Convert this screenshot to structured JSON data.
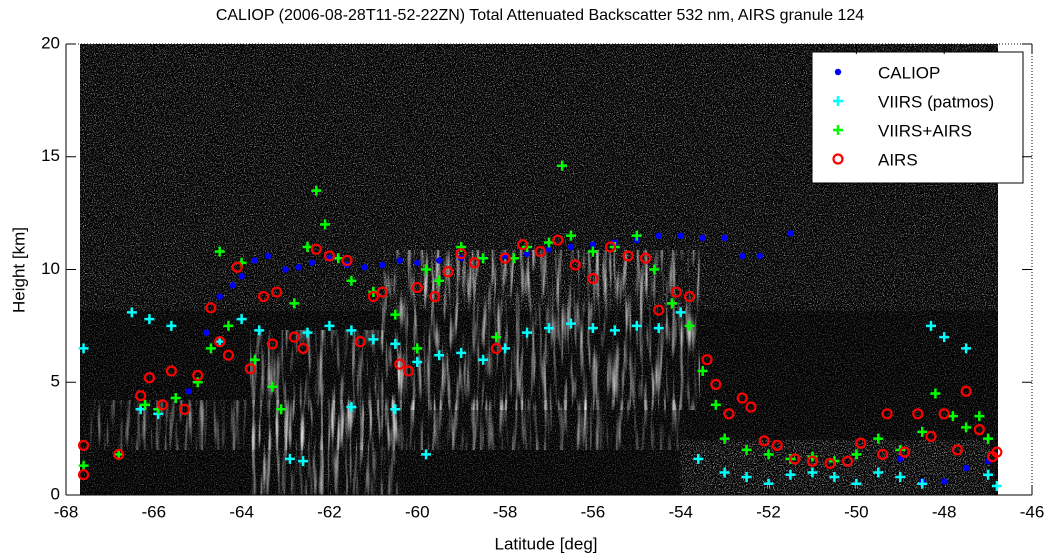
{
  "chart_data": {
    "type": "scatter",
    "title": "CALIOP (2006-08-28T11-52-22ZN) Total Attenuated Backscatter 532 nm, AIRS granule 124",
    "x_label": "Latitude [deg]",
    "y_label": "Height [km]",
    "xlim": [
      -68,
      -46
    ],
    "ylim": [
      0,
      20
    ],
    "xticks": [
      -68,
      -66,
      -64,
      -62,
      -60,
      -58,
      -56,
      -54,
      -52,
      -50,
      -48,
      -46
    ],
    "yticks": [
      0,
      5,
      10,
      15,
      20
    ],
    "legend": "top-right",
    "series": [
      {
        "name": "CALIOP",
        "color": "#0000ff",
        "marker": "dot",
        "x": [
          -65.2,
          -64.8,
          -64.5,
          -64.2,
          -64.0,
          -63.7,
          -63.4,
          -63.0,
          -62.7,
          -62.4,
          -62.0,
          -61.6,
          -61.2,
          -60.8,
          -60.4,
          -60.0,
          -59.5,
          -59.0,
          -58.5,
          -58.0,
          -57.5,
          -57.0,
          -56.5,
          -56.0,
          -55.5,
          -55.0,
          -54.5,
          -54.0,
          -53.5,
          -53.0,
          -52.6,
          -52.2,
          -51.5,
          -49.0,
          -48.5,
          -48.0,
          -47.5,
          -47.0
        ],
        "y": [
          4.6,
          7.2,
          8.8,
          9.3,
          9.7,
          10.4,
          10.6,
          10.0,
          10.1,
          10.3,
          10.5,
          10.2,
          10.1,
          10.2,
          10.4,
          10.3,
          10.4,
          10.5,
          10.5,
          10.6,
          10.7,
          10.9,
          11.0,
          11.1,
          11.2,
          11.3,
          11.5,
          11.5,
          11.4,
          11.4,
          10.6,
          10.6,
          11.6,
          1.6,
          0.6,
          0.6,
          1.2,
          1.5
        ]
      },
      {
        "name": "VIIRS (patmos)",
        "color": "#00ffff",
        "marker": "plus",
        "x": [
          -67.6,
          -66.5,
          -66.1,
          -65.6,
          -65.9,
          -66.3,
          -64.5,
          -64.0,
          -63.6,
          -62.9,
          -62.6,
          -62.5,
          -62.0,
          -61.5,
          -61.0,
          -60.5,
          -60.0,
          -59.5,
          -59.0,
          -58.5,
          -58.0,
          -57.5,
          -57.0,
          -56.5,
          -56.0,
          -55.5,
          -55.0,
          -54.5,
          -54.0,
          -59.8,
          -60.5,
          -61.5,
          -53.6,
          -53.0,
          -52.5,
          -52.0,
          -51.5,
          -51.0,
          -50.5,
          -50.0,
          -49.5,
          -49.0,
          -48.5,
          -48.3,
          -48.0,
          -47.5,
          -47.0,
          -46.8
        ],
        "y": [
          6.5,
          8.1,
          7.8,
          7.5,
          3.6,
          3.8,
          6.8,
          7.8,
          7.3,
          1.6,
          1.5,
          7.2,
          7.5,
          7.3,
          6.9,
          6.7,
          5.9,
          6.2,
          6.3,
          6.0,
          6.5,
          7.2,
          7.4,
          7.6,
          7.4,
          7.3,
          7.5,
          7.4,
          8.1,
          1.8,
          3.8,
          3.9,
          1.6,
          1.0,
          0.8,
          0.5,
          0.9,
          1.0,
          0.8,
          0.5,
          1.0,
          0.8,
          0.5,
          7.5,
          7.0,
          6.5,
          0.9,
          0.4
        ]
      },
      {
        "name": "VIIRS+AIRS",
        "color": "#00ff00",
        "marker": "plus",
        "x": [
          -67.6,
          -66.8,
          -66.2,
          -65.9,
          -65.5,
          -65.0,
          -64.7,
          -64.5,
          -64.3,
          -64.0,
          -63.7,
          -63.3,
          -63.1,
          -62.8,
          -62.5,
          -62.3,
          -62.1,
          -61.8,
          -61.5,
          -61.0,
          -60.5,
          -60.0,
          -59.8,
          -59.5,
          -59.0,
          -58.5,
          -58.2,
          -57.8,
          -57.5,
          -57.0,
          -56.7,
          -56.5,
          -56.0,
          -55.5,
          -55.0,
          -54.6,
          -54.2,
          -53.8,
          -53.5,
          -53.2,
          -53.0,
          -52.5,
          -52.0,
          -51.5,
          -51.0,
          -50.5,
          -50.0,
          -49.5,
          -49.0,
          -48.5,
          -48.2,
          -47.8,
          -47.5,
          -47.2,
          -47.0
        ],
        "y": [
          1.3,
          1.8,
          4.0,
          3.8,
          4.3,
          5.0,
          6.5,
          10.8,
          7.5,
          10.3,
          6.0,
          4.8,
          3.8,
          8.5,
          11.0,
          13.5,
          12.0,
          10.5,
          9.5,
          9.0,
          8.0,
          6.5,
          10.0,
          9.5,
          11.0,
          10.5,
          7.0,
          10.5,
          11.0,
          11.2,
          14.6,
          11.5,
          10.8,
          11.0,
          11.5,
          10.0,
          8.5,
          7.5,
          5.5,
          4.0,
          2.5,
          2.0,
          1.8,
          1.6,
          1.7,
          1.5,
          1.8,
          2.5,
          2.0,
          2.8,
          4.5,
          3.5,
          3.0,
          3.5,
          2.5
        ]
      },
      {
        "name": "AIRS",
        "color": "#ff0000",
        "marker": "circle",
        "x": [
          -67.6,
          -67.6,
          -66.8,
          -66.3,
          -66.1,
          -65.8,
          -65.6,
          -65.3,
          -65.0,
          -64.7,
          -64.5,
          -64.3,
          -64.1,
          -63.8,
          -63.5,
          -63.3,
          -63.2,
          -62.8,
          -62.6,
          -62.3,
          -62.0,
          -61.6,
          -61.3,
          -61.0,
          -60.8,
          -60.4,
          -60.2,
          -60.0,
          -59.6,
          -59.3,
          -59.0,
          -58.7,
          -58.2,
          -58.0,
          -57.6,
          -57.2,
          -56.8,
          -56.4,
          -56.0,
          -55.6,
          -55.2,
          -54.8,
          -54.5,
          -54.1,
          -53.8,
          -53.4,
          -53.2,
          -52.9,
          -52.6,
          -52.4,
          -52.1,
          -51.8,
          -51.4,
          -51.0,
          -50.6,
          -50.2,
          -49.9,
          -49.4,
          -49.3,
          -48.9,
          -48.6,
          -48.3,
          -48.0,
          -47.7,
          -47.5,
          -47.2,
          -46.9,
          -46.8
        ],
        "y": [
          2.2,
          0.9,
          1.8,
          4.4,
          5.2,
          4.0,
          5.5,
          3.8,
          5.3,
          8.3,
          6.8,
          6.2,
          10.1,
          5.6,
          8.8,
          6.7,
          9.0,
          7.0,
          6.5,
          10.9,
          10.6,
          10.4,
          6.8,
          8.8,
          9.0,
          5.8,
          5.5,
          9.2,
          8.8,
          9.9,
          10.7,
          10.3,
          6.5,
          10.5,
          11.1,
          10.8,
          11.3,
          10.2,
          9.6,
          11.0,
          10.6,
          10.5,
          8.2,
          9.0,
          8.8,
          6.0,
          4.9,
          3.6,
          4.3,
          3.9,
          2.4,
          2.2,
          1.6,
          1.5,
          1.4,
          1.5,
          2.3,
          1.8,
          3.6,
          1.9,
          3.6,
          2.6,
          3.6,
          2.0,
          4.6,
          2.9,
          1.7,
          1.9
        ]
      }
    ]
  }
}
